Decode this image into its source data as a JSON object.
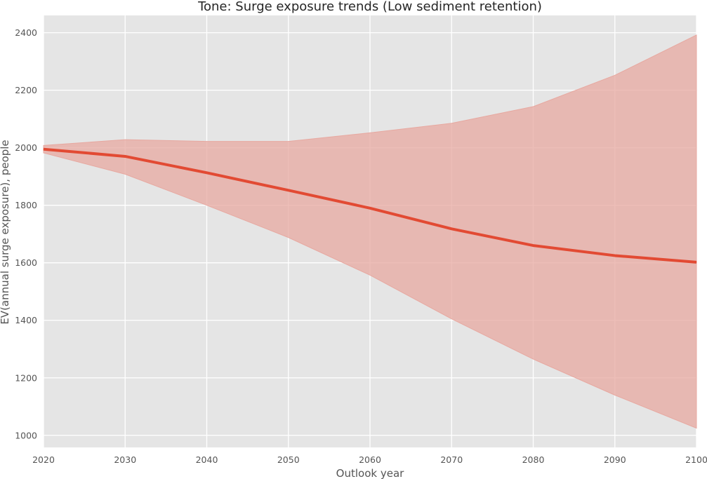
{
  "chart_data": {
    "type": "line",
    "title": "Tone: Surge exposure trends (Low sediment retention)",
    "xlabel": "Outlook year",
    "ylabel": "EV(annual surge exposure), people",
    "x": [
      2020,
      2030,
      2040,
      2050,
      2060,
      2070,
      2080,
      2090,
      2100
    ],
    "xlim": [
      2020,
      2100
    ],
    "ylim": [
      958,
      2460
    ],
    "xticks": [
      2020,
      2030,
      2040,
      2050,
      2060,
      2070,
      2080,
      2090,
      2100
    ],
    "yticks": [
      1000,
      1200,
      1400,
      1600,
      1800,
      2000,
      2200,
      2400
    ],
    "grid": true,
    "series": [
      {
        "values": [
          1995,
          1970,
          1913,
          1852,
          1790,
          1718,
          1660,
          1625,
          1602
        ],
        "band_lower": [
          1982,
          1908,
          1800,
          1688,
          1557,
          1405,
          1265,
          1140,
          1025
        ],
        "band_upper": [
          2008,
          2028,
          2022,
          2022,
          2052,
          2085,
          2143,
          2252,
          2392
        ],
        "color": "#e24a33",
        "band_color": "#e7a8a0"
      }
    ],
    "colors": {
      "plot_background": "#e5e5e5",
      "grid": "#ffffff"
    }
  }
}
